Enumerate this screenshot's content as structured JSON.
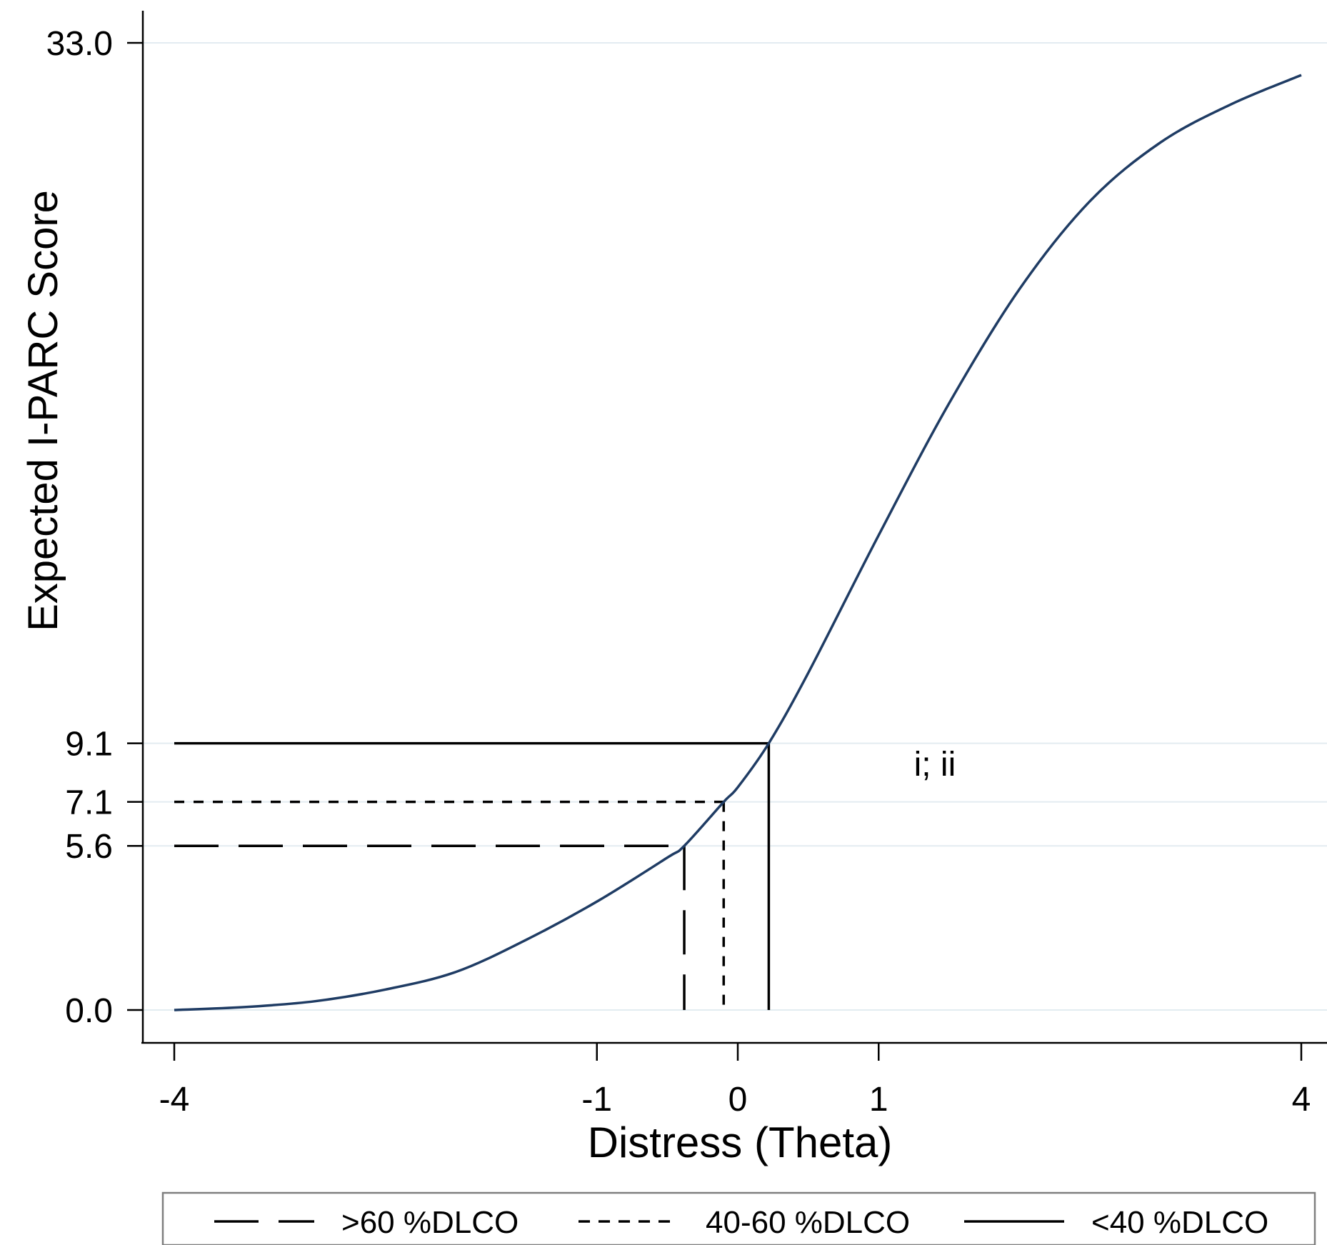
{
  "chart_data": {
    "type": "line",
    "title": "",
    "xlabel": "Distress (Theta)",
    "ylabel": "Expected I-PARC Score",
    "xlim": [
      -4,
      4
    ],
    "ylim": [
      0,
      33
    ],
    "x_ticks": [
      -4,
      -1,
      0,
      1,
      4
    ],
    "x_tick_labels": [
      "-4",
      "-1",
      "0",
      "1",
      "4"
    ],
    "y_ticks": [
      0,
      5.6,
      7.1,
      9.1,
      33
    ],
    "y_tick_labels": [
      "0.0",
      "5.6",
      "7.1",
      "9.1",
      "33.0"
    ],
    "grid": true,
    "curve": {
      "color": "#1f3c64",
      "x": [
        -4,
        -3.5,
        -3,
        -2.5,
        -2,
        -1.5,
        -1,
        -0.5,
        -0.38,
        -0.1,
        0,
        0.22,
        0.5,
        1,
        1.5,
        2,
        2.5,
        3,
        3.5,
        4
      ],
      "y": [
        0.0,
        0.1,
        0.3,
        0.7,
        1.3,
        2.4,
        3.7,
        5.2,
        5.6,
        7.1,
        7.6,
        9.1,
        11.5,
        16.2,
        20.7,
        24.6,
        27.6,
        29.6,
        30.9,
        31.9
      ]
    },
    "series": [
      {
        "name": ">60 %DLCO",
        "style": "long-dash",
        "theta": -0.38,
        "score": 5.6
      },
      {
        "name": "40-60 %DLCO",
        "style": "dotted",
        "theta": -0.1,
        "score": 7.1
      },
      {
        "name": "<40 %DLCO",
        "style": "solid",
        "theta": 0.22,
        "score": 9.1
      }
    ],
    "annotations": [
      {
        "text": "i; ii",
        "x": 1.25,
        "y": 8.0
      }
    ],
    "legend_position": "bottom"
  }
}
